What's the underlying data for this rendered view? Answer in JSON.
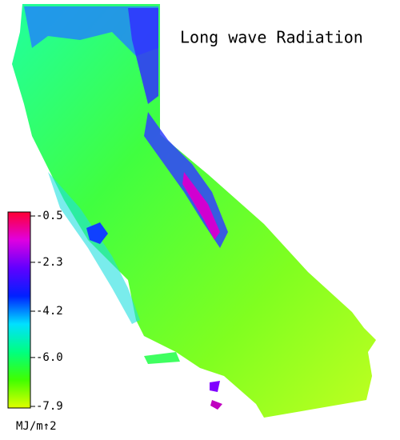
{
  "title": "Long wave Radiation",
  "colorbar": {
    "lim": [
      -0.5,
      -7.9
    ],
    "ticks": [
      -0.5,
      -2.3,
      -4.2,
      {
        "value": -6,
        "label": "-6.0"
      },
      -7.9
    ],
    "unit": "MJ/m↑2",
    "colors": [
      "#ff0033",
      "#e000e0",
      "#6000ff",
      "#0020ff",
      "#00e0ff",
      "#00ff80",
      "#40ff00",
      "#e0ff00"
    ]
  }
}
